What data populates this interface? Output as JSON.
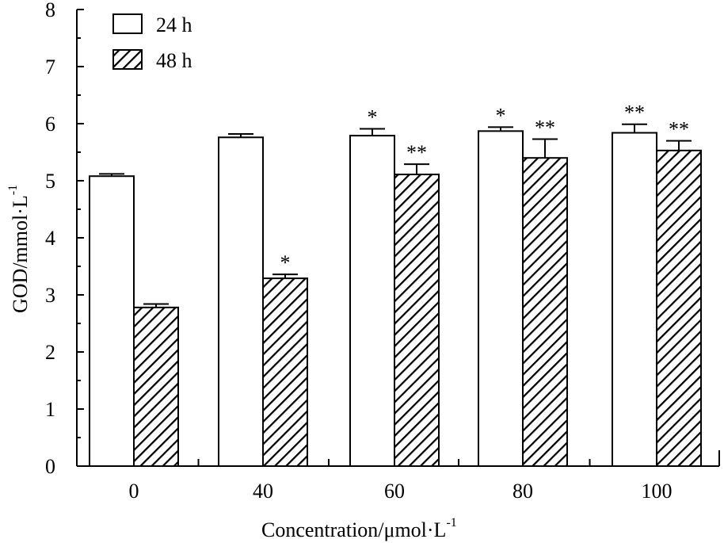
{
  "chart_data": {
    "type": "bar",
    "categories": [
      "0",
      "40",
      "60",
      "80",
      "100"
    ],
    "series": [
      {
        "name": "24 h",
        "pattern": "white",
        "values": [
          5.08,
          5.76,
          5.79,
          5.87,
          5.84
        ],
        "errors": [
          0.04,
          0.06,
          0.12,
          0.07,
          0.15
        ],
        "significance": [
          "",
          "",
          "*",
          "*",
          "**"
        ]
      },
      {
        "name": "48 h",
        "pattern": "hatched",
        "values": [
          2.78,
          3.29,
          5.11,
          5.4,
          5.53
        ],
        "errors": [
          0.06,
          0.07,
          0.18,
          0.33,
          0.17
        ],
        "significance": [
          "",
          "*",
          "**",
          "**",
          "**"
        ]
      }
    ],
    "xlabel": "Concentration/μmol·L",
    "xlabel_superscript": "-1",
    "ylabel": "GOD/mmol·L",
    "ylabel_superscript": "-1",
    "ylim": [
      0,
      8
    ],
    "yticks": [
      "0",
      "1",
      "2",
      "3",
      "4",
      "5",
      "6",
      "7",
      "8"
    ],
    "legend_position": "top-left",
    "grid": false
  },
  "colors": {
    "bar_fill": "#ffffff",
    "stroke": "#000000"
  }
}
